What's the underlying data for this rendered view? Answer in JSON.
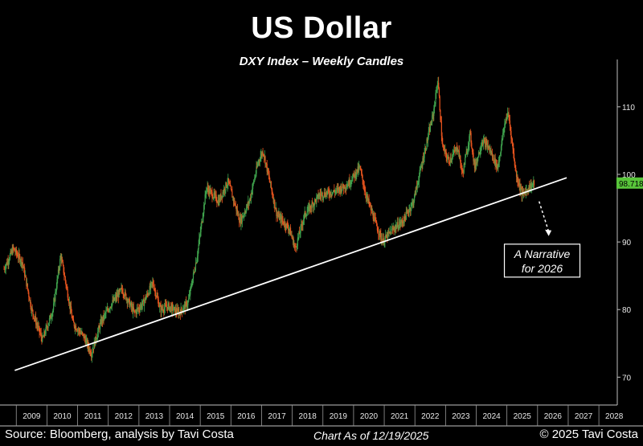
{
  "header": {
    "title": "US Dollar",
    "subtitle": "DXY Index – Weekly Candles"
  },
  "footer": {
    "source": "Source: Bloomberg, analysis by Tavi Costa",
    "as_of": "Chart As of 12/19/2025",
    "copyright": "© 2025 Tavi Costa"
  },
  "colors": {
    "background": "#000000",
    "up_candle": "#3fa34d",
    "down_candle": "#e8541e",
    "trendline": "#ffffff",
    "last_price_badge": "#58c53a"
  },
  "chart_data": {
    "type": "candlestick",
    "title": "US Dollar",
    "subtitle": "DXY Index – Weekly Candles",
    "frequency": "weekly",
    "x_ticks": [
      "2009",
      "2010",
      "2011",
      "2012",
      "2013",
      "2014",
      "2015",
      "2016",
      "2017",
      "2018",
      "2019",
      "2020",
      "2021",
      "2022",
      "2023",
      "2024",
      "2025",
      "2026",
      "2027",
      "2028"
    ],
    "y_ticks": [
      70,
      80,
      90,
      100,
      110
    ],
    "ylim": [
      66,
      117
    ],
    "xlim": [
      2008.6,
      2028.6
    ],
    "grid": false,
    "last_price": "98.718",
    "price_path": [
      [
        2008.6,
        86
      ],
      [
        2008.9,
        89
      ],
      [
        2009.2,
        87
      ],
      [
        2009.5,
        80
      ],
      [
        2009.85,
        75.5
      ],
      [
        2010.2,
        80
      ],
      [
        2010.45,
        88
      ],
      [
        2010.85,
        78
      ],
      [
        2011.2,
        76
      ],
      [
        2011.45,
        73.5
      ],
      [
        2011.75,
        78
      ],
      [
        2012.05,
        80.5
      ],
      [
        2012.45,
        83
      ],
      [
        2012.85,
        79.5
      ],
      [
        2013.15,
        81
      ],
      [
        2013.45,
        84
      ],
      [
        2013.7,
        80
      ],
      [
        2013.95,
        80.5
      ],
      [
        2014.3,
        79.5
      ],
      [
        2014.6,
        81
      ],
      [
        2014.9,
        88
      ],
      [
        2015.2,
        98
      ],
      [
        2015.6,
        96
      ],
      [
        2015.9,
        99
      ],
      [
        2016.3,
        93
      ],
      [
        2016.6,
        96
      ],
      [
        2016.9,
        102
      ],
      [
        2017.05,
        103.5
      ],
      [
        2017.5,
        94
      ],
      [
        2017.9,
        92
      ],
      [
        2018.1,
        89
      ],
      [
        2018.4,
        94
      ],
      [
        2018.9,
        97
      ],
      [
        2019.4,
        97.5
      ],
      [
        2019.8,
        98.5
      ],
      [
        2020.2,
        101
      ],
      [
        2020.4,
        97
      ],
      [
        2020.7,
        93
      ],
      [
        2020.95,
        90
      ],
      [
        2021.3,
        92
      ],
      [
        2021.6,
        93
      ],
      [
        2021.95,
        96
      ],
      [
        2022.3,
        103
      ],
      [
        2022.6,
        109
      ],
      [
        2022.75,
        114
      ],
      [
        2022.9,
        104
      ],
      [
        2023.1,
        102
      ],
      [
        2023.4,
        104
      ],
      [
        2023.55,
        100
      ],
      [
        2023.8,
        106
      ],
      [
        2023.95,
        101
      ],
      [
        2024.2,
        105
      ],
      [
        2024.4,
        104
      ],
      [
        2024.7,
        101
      ],
      [
        2024.95,
        108
      ],
      [
        2025.05,
        109
      ],
      [
        2025.3,
        100
      ],
      [
        2025.5,
        97
      ],
      [
        2025.7,
        98
      ],
      [
        2025.9,
        98.7
      ]
    ],
    "trendline": {
      "start": [
        2008.95,
        71
      ],
      "end": [
        2026.95,
        99.5
      ],
      "color": "#ffffff"
    },
    "projection_arrow": {
      "from": [
        2026.05,
        96
      ],
      "to": [
        2026.35,
        91
      ]
    },
    "annotation": {
      "line1": "A Narrative",
      "line2": "for 2026"
    }
  }
}
